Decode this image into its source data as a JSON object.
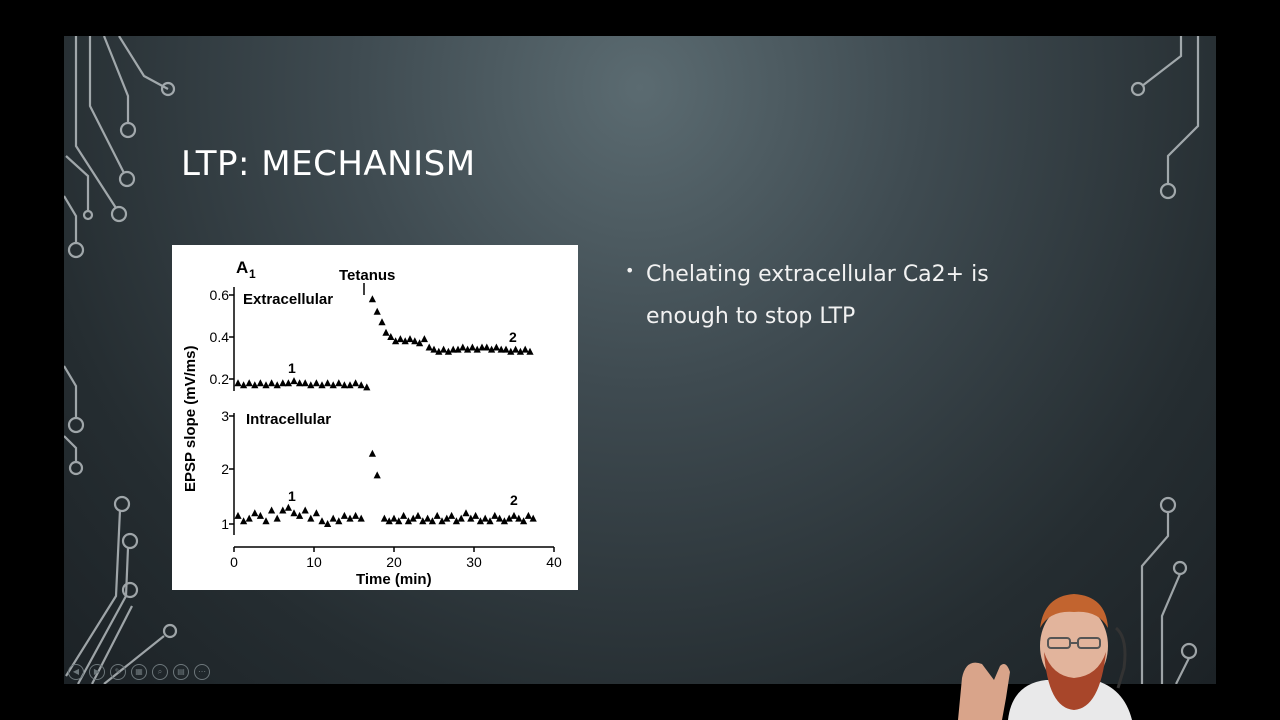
{
  "slide": {
    "title": "LTP: MECHANISM",
    "bullets": [
      "Chelating extracellular Ca2+ is enough to stop LTP"
    ]
  },
  "figure": {
    "panel_label": "A",
    "panel_subscript": "1",
    "tetanus_label": "Tetanus",
    "top_panel_label": "Extracellular",
    "bottom_panel_label": "Intracellular",
    "ylabel": "EPSP slope (mV/ms)",
    "xlabel": "Time (min)",
    "marker_1": "1",
    "marker_2": "2",
    "top_yticks": [
      "0.6",
      "0.4",
      "0.2"
    ],
    "bottom_yticks": [
      "3",
      "2",
      "1"
    ],
    "xticks": [
      "0",
      "10",
      "20",
      "30",
      "40"
    ]
  },
  "chart_data": [
    {
      "type": "scatter",
      "title": "Extracellular",
      "xlabel": "Time (min)",
      "ylabel": "EPSP slope (mV/ms)",
      "xlim": [
        0,
        40
      ],
      "ylim": [
        0.1,
        0.62
      ],
      "x": [
        0.5,
        1.2,
        1.9,
        2.6,
        3.3,
        4.0,
        4.7,
        5.4,
        6.1,
        6.8,
        7.5,
        8.2,
        8.9,
        9.6,
        10.3,
        11.0,
        11.7,
        12.4,
        13.1,
        13.8,
        14.5,
        15.2,
        15.9,
        16.6,
        17.3,
        17.9,
        18.5,
        19.0,
        19.6,
        20.2,
        20.8,
        21.4,
        22.0,
        22.6,
        23.2,
        23.8,
        24.4,
        25.0,
        25.6,
        26.2,
        26.8,
        27.4,
        28.0,
        28.6,
        29.2,
        29.8,
        30.4,
        31.0,
        31.6,
        32.2,
        32.8,
        33.4,
        34.0,
        34.6,
        35.2,
        35.8,
        36.4,
        37.0
      ],
      "y": [
        0.18,
        0.17,
        0.18,
        0.17,
        0.18,
        0.17,
        0.18,
        0.17,
        0.18,
        0.18,
        0.19,
        0.18,
        0.18,
        0.17,
        0.18,
        0.17,
        0.18,
        0.17,
        0.18,
        0.17,
        0.17,
        0.18,
        0.17,
        0.16,
        0.58,
        0.52,
        0.47,
        0.42,
        0.4,
        0.38,
        0.39,
        0.38,
        0.39,
        0.38,
        0.37,
        0.39,
        0.35,
        0.34,
        0.33,
        0.34,
        0.33,
        0.34,
        0.34,
        0.35,
        0.34,
        0.35,
        0.34,
        0.35,
        0.35,
        0.34,
        0.35,
        0.34,
        0.34,
        0.33,
        0.34,
        0.33,
        0.34,
        0.33
      ]
    },
    {
      "type": "scatter",
      "title": "Intracellular",
      "xlabel": "Time (min)",
      "ylabel": "EPSP slope (mV/ms)",
      "xlim": [
        0,
        40
      ],
      "ylim": [
        0.8,
        3.1
      ],
      "x": [
        0.5,
        1.2,
        1.9,
        2.6,
        3.3,
        4.0,
        4.7,
        5.4,
        6.1,
        6.8,
        7.5,
        8.2,
        8.9,
        9.6,
        10.3,
        11.0,
        11.7,
        12.4,
        13.1,
        13.8,
        14.5,
        15.2,
        15.9,
        17.3,
        17.9,
        18.8,
        19.4,
        20.0,
        20.6,
        21.2,
        21.8,
        22.4,
        23.0,
        23.6,
        24.2,
        24.8,
        25.4,
        26.0,
        26.6,
        27.2,
        27.8,
        28.4,
        29.0,
        29.6,
        30.2,
        30.8,
        31.4,
        32.0,
        32.6,
        33.2,
        33.8,
        34.4,
        35.0,
        35.6,
        36.2,
        36.8,
        37.4
      ],
      "y": [
        1.15,
        1.05,
        1.1,
        1.2,
        1.15,
        1.05,
        1.25,
        1.1,
        1.25,
        1.3,
        1.2,
        1.15,
        1.25,
        1.1,
        1.2,
        1.05,
        1.0,
        1.1,
        1.05,
        1.15,
        1.1,
        1.15,
        1.1,
        2.3,
        1.9,
        1.1,
        1.05,
        1.1,
        1.05,
        1.15,
        1.05,
        1.1,
        1.15,
        1.05,
        1.1,
        1.05,
        1.15,
        1.05,
        1.1,
        1.15,
        1.05,
        1.1,
        1.2,
        1.1,
        1.15,
        1.05,
        1.1,
        1.05,
        1.15,
        1.1,
        1.05,
        1.1,
        1.15,
        1.1,
        1.05,
        1.15,
        1.1
      ]
    }
  ]
}
